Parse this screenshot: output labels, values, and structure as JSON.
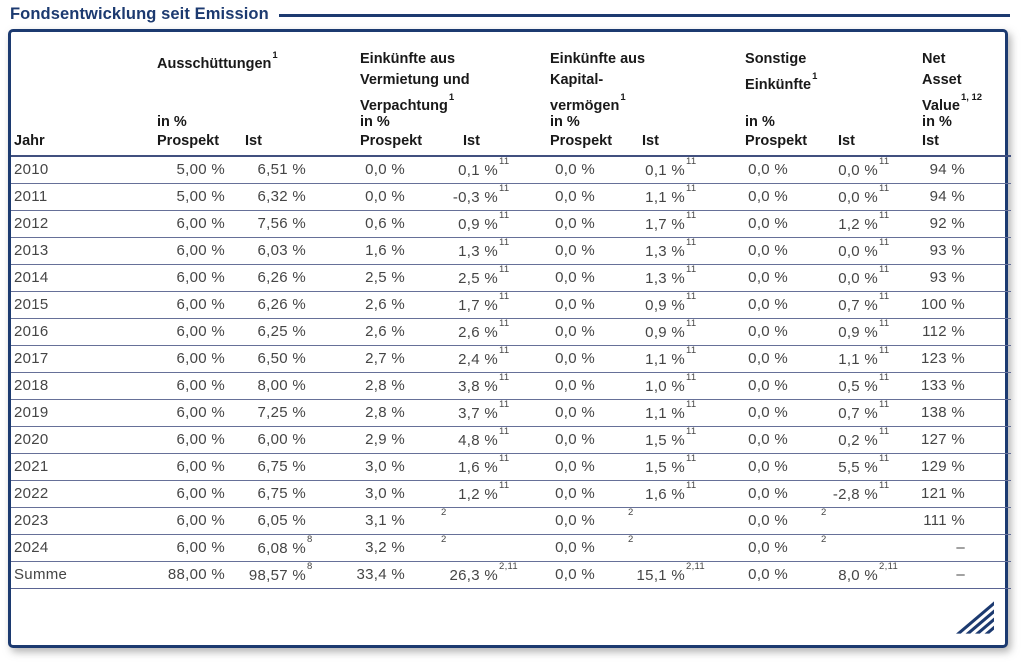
{
  "title": "Fondsentwicklung seit Emission",
  "accent_color": "#1c3a70",
  "table": {
    "header": {
      "jahr": "Jahr",
      "groups": [
        {
          "lines": [
            "Ausschüttungen"
          ],
          "sup": "1",
          "in_pct": "in %",
          "cols": [
            "Prospekt",
            "Ist"
          ]
        },
        {
          "lines": [
            "Einkünfte aus",
            "Vermietung und",
            "Verpachtung"
          ],
          "sup": "1",
          "in_pct": "in %",
          "cols": [
            "Prospekt",
            "Ist"
          ]
        },
        {
          "lines": [
            "Einkünfte aus",
            "Kapital-",
            "vermögen"
          ],
          "sup": "1",
          "in_pct": "in %",
          "cols": [
            "Prospekt",
            "Ist"
          ]
        },
        {
          "lines": [
            "Sonstige",
            "Einkünfte"
          ],
          "sup": "1",
          "in_pct": "in %",
          "cols": [
            "Prospekt",
            "Ist"
          ]
        },
        {
          "lines": [
            "Net",
            "Asset",
            "Value"
          ],
          "sup": "1, 12",
          "in_pct": "in %",
          "cols": [
            "Ist"
          ]
        }
      ]
    },
    "rows": [
      {
        "jahr": "2010",
        "cells": [
          [
            "5,00 %"
          ],
          [
            "6,51 %",
            ""
          ],
          [
            "0,0 %"
          ],
          [
            "0,1 %",
            "11"
          ],
          [
            "0,0 %"
          ],
          [
            "0,1 %",
            "11"
          ],
          [
            "0,0 %"
          ],
          [
            "0,0 %",
            "11"
          ],
          [
            "94 %"
          ]
        ]
      },
      {
        "jahr": "2011",
        "cells": [
          [
            "5,00 %"
          ],
          [
            "6,32 %",
            ""
          ],
          [
            "0,0 %"
          ],
          [
            "-0,3 %",
            "11"
          ],
          [
            "0,0 %"
          ],
          [
            "1,1 %",
            "11"
          ],
          [
            "0,0 %"
          ],
          [
            "0,0 %",
            "11"
          ],
          [
            "94 %"
          ]
        ]
      },
      {
        "jahr": "2012",
        "cells": [
          [
            "6,00 %"
          ],
          [
            "7,56 %",
            ""
          ],
          [
            "0,6 %"
          ],
          [
            "0,9 %",
            "11"
          ],
          [
            "0,0 %"
          ],
          [
            "1,7 %",
            "11"
          ],
          [
            "0,0 %"
          ],
          [
            "1,2 %",
            "11"
          ],
          [
            "92 %"
          ]
        ]
      },
      {
        "jahr": "2013",
        "cells": [
          [
            "6,00 %"
          ],
          [
            "6,03 %",
            ""
          ],
          [
            "1,6 %"
          ],
          [
            "1,3 %",
            "11"
          ],
          [
            "0,0 %"
          ],
          [
            "1,3 %",
            "11"
          ],
          [
            "0,0 %"
          ],
          [
            "0,0 %",
            "11"
          ],
          [
            "93 %"
          ]
        ]
      },
      {
        "jahr": "2014",
        "cells": [
          [
            "6,00 %"
          ],
          [
            "6,26 %",
            ""
          ],
          [
            "2,5 %"
          ],
          [
            "2,5 %",
            "11"
          ],
          [
            "0,0 %"
          ],
          [
            "1,3 %",
            "11"
          ],
          [
            "0,0 %"
          ],
          [
            "0,0 %",
            "11"
          ],
          [
            "93 %"
          ]
        ]
      },
      {
        "jahr": "2015",
        "cells": [
          [
            "6,00 %"
          ],
          [
            "6,26 %",
            ""
          ],
          [
            "2,6 %"
          ],
          [
            "1,7 %",
            "11"
          ],
          [
            "0,0 %"
          ],
          [
            "0,9 %",
            "11"
          ],
          [
            "0,0 %"
          ],
          [
            "0,7 %",
            "11"
          ],
          [
            "100 %"
          ]
        ]
      },
      {
        "jahr": "2016",
        "cells": [
          [
            "6,00 %"
          ],
          [
            "6,25 %",
            ""
          ],
          [
            "2,6 %"
          ],
          [
            "2,6 %",
            "11"
          ],
          [
            "0,0 %"
          ],
          [
            "0,9 %",
            "11"
          ],
          [
            "0,0 %"
          ],
          [
            "0,9 %",
            "11"
          ],
          [
            "112 %"
          ]
        ]
      },
      {
        "jahr": "2017",
        "cells": [
          [
            "6,00 %"
          ],
          [
            "6,50 %",
            ""
          ],
          [
            "2,7 %"
          ],
          [
            "2,4 %",
            "11"
          ],
          [
            "0,0 %"
          ],
          [
            "1,1 %",
            "11"
          ],
          [
            "0,0 %"
          ],
          [
            "1,1 %",
            "11"
          ],
          [
            "123 %"
          ]
        ]
      },
      {
        "jahr": "2018",
        "cells": [
          [
            "6,00 %"
          ],
          [
            "8,00 %",
            ""
          ],
          [
            "2,8 %"
          ],
          [
            "3,8 %",
            "11"
          ],
          [
            "0,0 %"
          ],
          [
            "1,0 %",
            "11"
          ],
          [
            "0,0 %"
          ],
          [
            "0,5 %",
            "11"
          ],
          [
            "133 %"
          ]
        ]
      },
      {
        "jahr": "2019",
        "cells": [
          [
            "6,00 %"
          ],
          [
            "7,25 %",
            ""
          ],
          [
            "2,8 %"
          ],
          [
            "3,7 %",
            "11"
          ],
          [
            "0,0 %"
          ],
          [
            "1,1 %",
            "11"
          ],
          [
            "0,0 %"
          ],
          [
            "0,7 %",
            "11"
          ],
          [
            "138 %"
          ]
        ]
      },
      {
        "jahr": "2020",
        "cells": [
          [
            "6,00 %"
          ],
          [
            "6,00 %",
            ""
          ],
          [
            "2,9 %"
          ],
          [
            "4,8 %",
            "11"
          ],
          [
            "0,0 %"
          ],
          [
            "1,5 %",
            "11"
          ],
          [
            "0,0 %"
          ],
          [
            "0,2 %",
            "11"
          ],
          [
            "127 %"
          ]
        ]
      },
      {
        "jahr": "2021",
        "cells": [
          [
            "6,00 %"
          ],
          [
            "6,75 %",
            ""
          ],
          [
            "3,0 %"
          ],
          [
            "1,6 %",
            "11"
          ],
          [
            "0,0 %"
          ],
          [
            "1,5 %",
            "11"
          ],
          [
            "0,0 %"
          ],
          [
            "5,5 %",
            "11"
          ],
          [
            "129 %"
          ]
        ]
      },
      {
        "jahr": "2022",
        "cells": [
          [
            "6,00 %"
          ],
          [
            "6,75 %",
            ""
          ],
          [
            "3,0 %"
          ],
          [
            "1,2 %",
            "11"
          ],
          [
            "0,0 %"
          ],
          [
            "1,6 %",
            "11"
          ],
          [
            "0,0 %"
          ],
          [
            "-2,8 %",
            "11"
          ],
          [
            "121 %"
          ]
        ]
      },
      {
        "jahr": "2023",
        "cells": [
          [
            "6,00 %"
          ],
          [
            "6,05 %",
            ""
          ],
          [
            "3,1 %"
          ],
          [
            "",
            "2"
          ],
          [
            "0,0 %"
          ],
          [
            "",
            "2"
          ],
          [
            "0,0 %"
          ],
          [
            "",
            "2"
          ],
          [
            "111 %"
          ]
        ]
      },
      {
        "jahr": "2024",
        "cells": [
          [
            "6,00 %"
          ],
          [
            "6,08 %",
            "8"
          ],
          [
            "3,2 %"
          ],
          [
            "",
            "2"
          ],
          [
            "0,0 %"
          ],
          [
            "",
            "2"
          ],
          [
            "0,0 %"
          ],
          [
            "",
            "2"
          ],
          [
            "–"
          ]
        ]
      },
      {
        "jahr": "Summe",
        "cells": [
          [
            "88,00 %"
          ],
          [
            "98,57 %",
            "8"
          ],
          [
            "33,4 %"
          ],
          [
            "26,3 %",
            "2,11"
          ],
          [
            "0,0 %"
          ],
          [
            "15,1 %",
            "2,11"
          ],
          [
            "0,0 %"
          ],
          [
            "8,0 %",
            "2,11"
          ],
          [
            "–"
          ]
        ]
      }
    ]
  }
}
